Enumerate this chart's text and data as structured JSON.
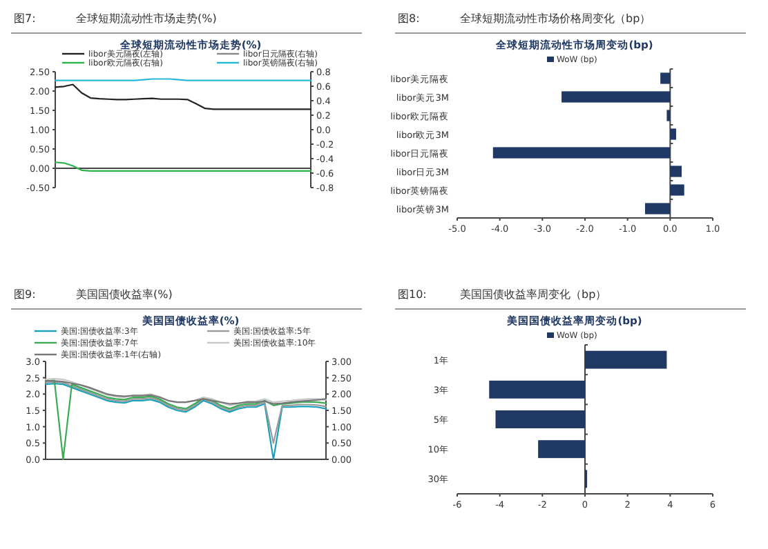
{
  "chart_data": [
    {
      "type": "line",
      "annotations": [
        "图7:"
      ],
      "title": "全球短期流动性市场走势(%)",
      "subtitle": "全球短期流动性市场走势(%)",
      "legend": "top",
      "categories": [
        null,
        null,
        null,
        null,
        null,
        null,
        null,
        null,
        null,
        null,
        null,
        null,
        null,
        null,
        null,
        null,
        null,
        null,
        null,
        null,
        null,
        null,
        null,
        null,
        null,
        null,
        null,
        null,
        null,
        null
      ],
      "ylim": [
        -0.5,
        2.5
      ],
      "yticks": [
        {
          "value": 2.5,
          "label": "2.50"
        },
        {
          "value": 2,
          "label": "2.00"
        },
        {
          "value": 1.5,
          "label": "1.50"
        },
        {
          "value": 1,
          "label": "1.00"
        },
        {
          "value": 0.5,
          "label": "0.50"
        },
        {
          "value": 0,
          "label": "0.00"
        },
        {
          "value": -0.5,
          "label": "-0.50"
        }
      ],
      "y2lim": [
        -0.8,
        0.8
      ],
      "y2ticks": [
        0.8,
        0.6,
        0.4,
        0.2,
        {
          "value": 0,
          "label": "0.0"
        },
        -0.2,
        -0.4,
        -0.6,
        -0.8
      ],
      "series": [
        {
          "name": "libor美元隔夜(左轴)",
          "color": "#222222",
          "values": [
            2.1,
            2.12,
            2.17,
            1.95,
            1.82,
            1.8,
            1.79,
            1.78,
            1.78,
            1.79,
            1.8,
            1.81,
            1.79,
            1.79,
            1.79,
            1.78,
            1.67,
            1.55,
            1.53,
            1.53,
            1.53,
            1.53,
            1.53,
            1.53,
            1.53,
            1.53,
            1.53,
            1.53,
            1.53,
            1.53
          ]
        },
        {
          "name": "libor日元隔夜(右轴)",
          "color": "#888888",
          "axis": "y2",
          "values": [
            null,
            null,
            null,
            null,
            null,
            null,
            null,
            null,
            null,
            null,
            null,
            null,
            null,
            null,
            null,
            null,
            null,
            null,
            null,
            null,
            null,
            null,
            null,
            null,
            null,
            null,
            null,
            null,
            null,
            null
          ]
        },
        {
          "name": "libor欧元隔夜(右轴)",
          "color": "#2db34a",
          "axis": "y2",
          "values": [
            -0.45,
            -0.46,
            -0.5,
            -0.56,
            -0.57,
            -0.57,
            -0.57,
            -0.57,
            -0.57,
            -0.57,
            -0.57,
            -0.57,
            -0.57,
            -0.57,
            -0.57,
            -0.57,
            -0.57,
            -0.57,
            -0.57,
            -0.57,
            -0.57,
            -0.57,
            -0.57,
            -0.57,
            -0.57,
            -0.57,
            -0.57,
            -0.57,
            -0.57,
            -0.57
          ]
        },
        {
          "name": "libor英镑隔夜(右轴)",
          "color": "#27b8d8",
          "axis": "y2",
          "values": [
            0.68,
            0.68,
            0.68,
            0.68,
            0.68,
            0.68,
            0.68,
            0.68,
            0.68,
            0.68,
            0.69,
            0.7,
            0.7,
            0.7,
            0.69,
            0.68,
            0.68,
            0.68,
            0.68,
            0.68,
            0.68,
            0.68,
            0.68,
            0.68,
            0.68,
            0.68,
            0.68,
            0.68,
            0.68,
            0.68
          ]
        }
      ]
    },
    {
      "type": "bar",
      "orientation": "horizontal",
      "annotations": [
        "图8:"
      ],
      "title": "全球短期流动性市场价格周变化（bp）",
      "subtitle": "全球短期流动性市场周变动(bp)",
      "legend": "top",
      "categories": [
        "libor美元隔夜",
        "libor美元3M",
        "libor欧元隔夜",
        "libor欧元3M",
        "libor日元隔夜",
        "libor日元3M",
        "libor英镑隔夜",
        "libor英镑3M"
      ],
      "xlim": [
        -5,
        1
      ],
      "xticks": [
        {
          "value": -5,
          "label": "-5.0"
        },
        {
          "value": -4,
          "label": "-4.0"
        },
        {
          "value": -3,
          "label": "-3.0"
        },
        {
          "value": -2,
          "label": "-2.0"
        },
        {
          "value": -1,
          "label": "-1.0"
        },
        {
          "value": 0,
          "label": "0.0"
        },
        {
          "value": 1,
          "label": "1.0"
        }
      ],
      "series": [
        {
          "name": "WoW (bp)",
          "color": "#1f3864",
          "values": [
            -0.23,
            -2.55,
            -0.08,
            0.14,
            -4.16,
            0.27,
            0.33,
            -0.59
          ]
        }
      ]
    },
    {
      "type": "line",
      "annotations": [
        "图9:"
      ],
      "title": "美国国债收益率(%)",
      "subtitle": "美国国债收益率(%)",
      "legend": "top",
      "categories": [
        null,
        null,
        null,
        null,
        null,
        null,
        null,
        null,
        null,
        null,
        null,
        null,
        null,
        null,
        null,
        null,
        null,
        null,
        null,
        null,
        null,
        null,
        null,
        null,
        null,
        null,
        null,
        null,
        null,
        null,
        null,
        null,
        null
      ],
      "ylim": [
        0,
        3
      ],
      "yticks": [
        {
          "value": 3,
          "label": "3.0"
        },
        2.5,
        {
          "value": 2,
          "label": "2.0"
        },
        1.5,
        {
          "value": 1,
          "label": "1.0"
        },
        0.5,
        {
          "value": 0,
          "label": "0.0"
        }
      ],
      "y2lim": [
        0,
        3
      ],
      "y2ticks": [
        {
          "value": 3,
          "label": "3.00"
        },
        {
          "value": 2.5,
          "label": "2.50"
        },
        {
          "value": 2,
          "label": "2.00"
        },
        {
          "value": 1.5,
          "label": "1.50"
        },
        {
          "value": 1,
          "label": "1.00"
        },
        {
          "value": 0.5,
          "label": "0.50"
        },
        {
          "value": 0,
          "label": "0.00"
        }
      ],
      "series": [
        {
          "name": "美国:国债收益率:3年",
          "color": "#1aa0b8",
          "values": [
            2.3,
            2.32,
            2.3,
            2.2,
            2.1,
            2.0,
            1.9,
            1.8,
            1.75,
            1.73,
            1.8,
            1.8,
            1.83,
            1.75,
            1.6,
            1.5,
            1.45,
            1.6,
            1.8,
            1.7,
            1.55,
            1.45,
            1.55,
            1.6,
            1.6,
            1.7,
            0,
            1.6,
            1.6,
            1.62,
            1.62,
            1.6,
            1.55
          ]
        },
        {
          "name": "美国:国债收益率:5年",
          "color": "#9a9a9a",
          "values": [
            2.35,
            2.37,
            2.35,
            2.25,
            2.15,
            2.05,
            1.95,
            1.85,
            1.8,
            1.78,
            1.85,
            1.85,
            1.88,
            1.8,
            1.65,
            1.55,
            1.5,
            1.65,
            1.85,
            1.75,
            1.6,
            1.5,
            1.6,
            1.65,
            1.65,
            1.75,
            0.5,
            1.65,
            1.65,
            1.68,
            1.68,
            1.66,
            1.62
          ]
        },
        {
          "name": "美国:国债收益率:7年",
          "color": "#3aaa55",
          "values": [
            2.4,
            2.42,
            0,
            2.3,
            2.2,
            2.1,
            2.0,
            1.9,
            1.85,
            1.83,
            1.9,
            1.9,
            1.93,
            1.85,
            1.7,
            1.6,
            1.55,
            1.7,
            1.88,
            1.8,
            1.65,
            1.55,
            1.65,
            1.7,
            1.7,
            1.8,
            1.65,
            1.7,
            1.72,
            1.75,
            1.76,
            1.75,
            1.72
          ]
        },
        {
          "name": "美国:国债收益率:10年",
          "color": "#c8c8c8",
          "values": [
            2.45,
            2.47,
            2.45,
            2.37,
            2.27,
            2.17,
            2.07,
            1.97,
            1.92,
            1.9,
            1.97,
            1.97,
            2.0,
            1.92,
            1.8,
            1.75,
            1.75,
            1.8,
            1.9,
            1.85,
            1.75,
            1.65,
            1.7,
            1.78,
            1.78,
            1.85,
            1.75,
            1.78,
            1.8,
            1.83,
            1.85,
            1.85,
            1.82
          ]
        },
        {
          "name": "美国:国债收益率:1年(右轴)",
          "color": "#777777",
          "axis": "y2",
          "values": [
            2.4,
            2.4,
            2.38,
            2.33,
            2.28,
            2.2,
            2.1,
            2.0,
            1.95,
            1.93,
            1.95,
            1.95,
            1.97,
            1.9,
            1.8,
            1.75,
            1.75,
            1.8,
            1.85,
            1.8,
            1.75,
            1.7,
            1.72,
            1.75,
            1.75,
            1.78,
            1.7,
            1.72,
            1.75,
            1.78,
            1.8,
            1.82,
            1.85
          ]
        }
      ]
    },
    {
      "type": "bar",
      "orientation": "horizontal",
      "annotations": [
        "图10:"
      ],
      "title": "美国国债收益率周变化（bp）",
      "subtitle": "美国国债收益率周变动(bp)",
      "legend": "top",
      "categories": [
        "1年",
        "3年",
        "5年",
        "10年",
        "30年"
      ],
      "xlim": [
        -6,
        6
      ],
      "xticks": [
        -6,
        -4,
        -2,
        0,
        2,
        4,
        6
      ],
      "series": [
        {
          "name": "WoW (bp)",
          "color": "#1f3864",
          "values": [
            3.84,
            -4.5,
            -4.2,
            -2.2,
            0.1
          ]
        }
      ]
    }
  ]
}
